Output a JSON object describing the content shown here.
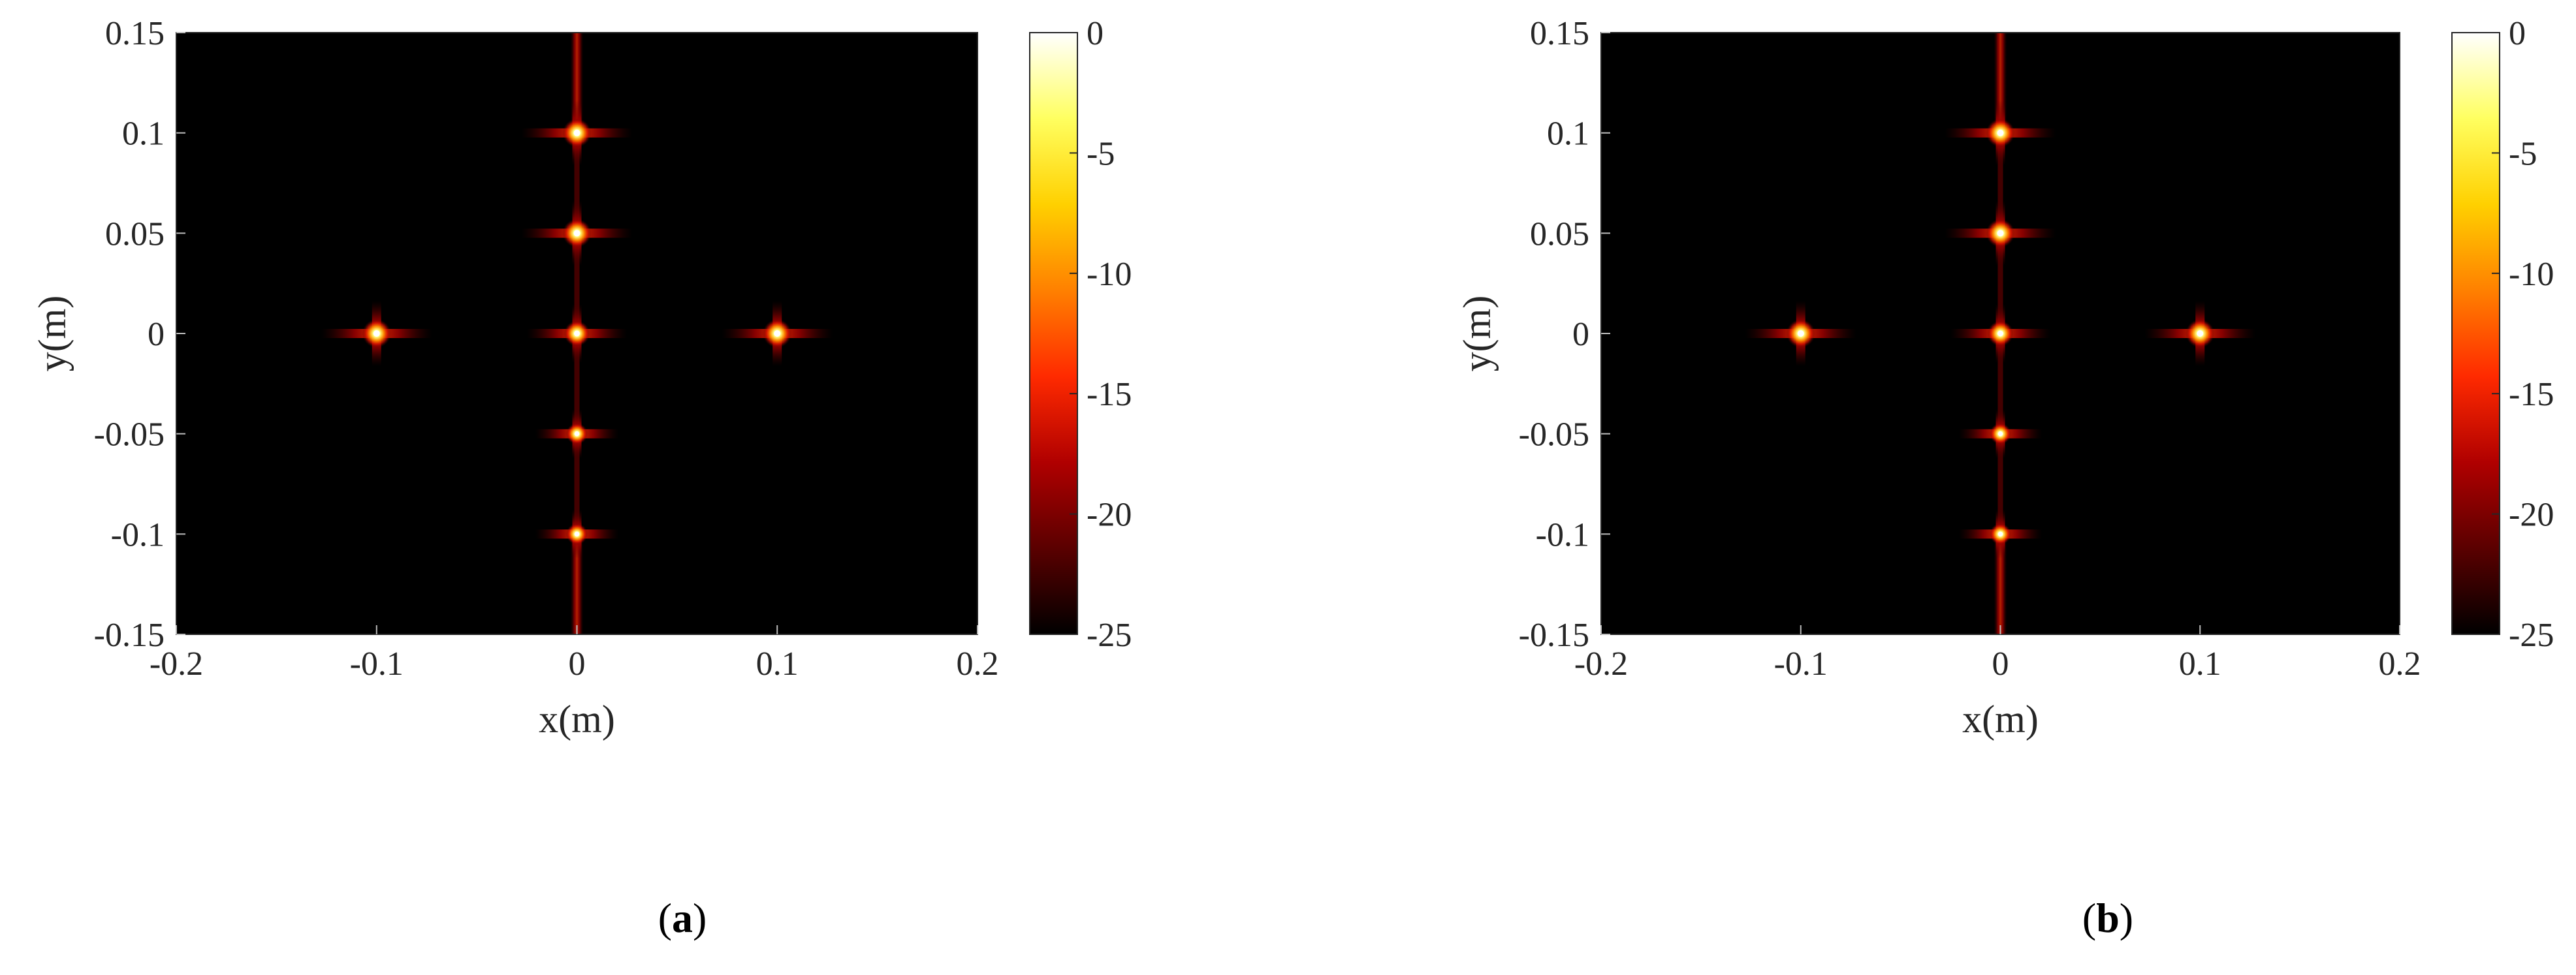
{
  "colors": {
    "background": "#000000",
    "colormap": "hot",
    "colormap_stops": [
      "#000000",
      "#5a0000",
      "#b00000",
      "#ff2a00",
      "#ff8000",
      "#ffd000",
      "#ffff60",
      "#ffffff"
    ],
    "axis": "#262626"
  },
  "chart_data": [
    {
      "type": "heatmap",
      "panel_label": "a",
      "xlabel": "x(m)",
      "ylabel": "y(m)",
      "xlim": [
        -0.2,
        0.2
      ],
      "ylim": [
        -0.15,
        0.15
      ],
      "xticks": [
        "-0.2",
        "-0.1",
        "0",
        "0.1",
        "0.2"
      ],
      "yticks": [
        "0.15",
        "0.1",
        "0.05",
        "0",
        "-0.05",
        "-0.1",
        "-0.15"
      ],
      "colorbar": {
        "range": [
          -25,
          0
        ],
        "ticks": [
          "0",
          "-5",
          "-10",
          "-15",
          "-20",
          "-25"
        ]
      },
      "points": [
        {
          "x": 0,
          "y": 0.1,
          "level": 0
        },
        {
          "x": 0,
          "y": 0.05,
          "level": 0
        },
        {
          "x": -0.1,
          "y": 0,
          "level": 0
        },
        {
          "x": 0,
          "y": 0,
          "level": -1
        },
        {
          "x": 0.1,
          "y": 0,
          "level": 0
        },
        {
          "x": 0,
          "y": -0.05,
          "level": -2
        },
        {
          "x": 0,
          "y": -0.1,
          "level": -2
        }
      ]
    },
    {
      "type": "heatmap",
      "panel_label": "b",
      "xlabel": "x(m)",
      "ylabel": "y(m)",
      "xlim": [
        -0.2,
        0.2
      ],
      "ylim": [
        -0.15,
        0.15
      ],
      "xticks": [
        "-0.2",
        "-0.1",
        "0",
        "0.1",
        "0.2"
      ],
      "yticks": [
        "0.15",
        "0.1",
        "0.05",
        "0",
        "-0.05",
        "-0.1",
        "-0.15"
      ],
      "colorbar": {
        "range": [
          -25,
          0
        ],
        "ticks": [
          "0",
          "-5",
          "-10",
          "-15",
          "-20",
          "-25"
        ]
      },
      "points": [
        {
          "x": 0,
          "y": 0.1,
          "level": 0
        },
        {
          "x": 0,
          "y": 0.05,
          "level": 0
        },
        {
          "x": -0.1,
          "y": 0,
          "level": 0
        },
        {
          "x": 0,
          "y": 0,
          "level": -1
        },
        {
          "x": 0.1,
          "y": 0,
          "level": 0
        },
        {
          "x": 0,
          "y": -0.05,
          "level": -2
        },
        {
          "x": 0,
          "y": -0.1,
          "level": -2
        }
      ]
    }
  ]
}
